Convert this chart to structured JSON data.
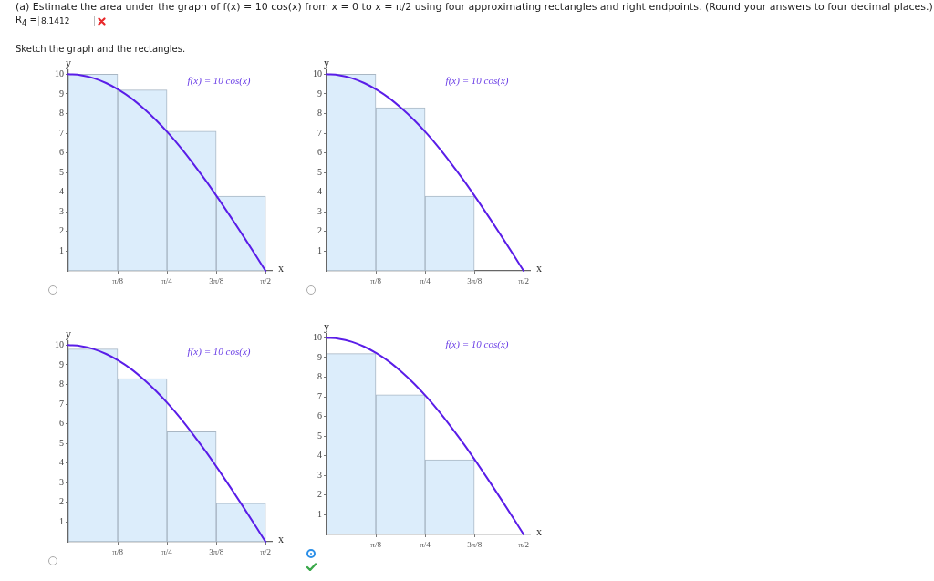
{
  "chart_data": [
    {
      "type": "other",
      "title": "(a) Estimate the area under the graph of f(x) = 10 cos(x) from x = 0 to x = π/2 using four approximating rectangles and right endpoints. (Round your answers to four decimal places.)",
      "annotations": [
        "R$_{4}$ =",
        "8.1412",
        "Sketch the graph and the rectangles."
      ]
    },
    {
      "type": "histogram",
      "xlabel": "x",
      "ylabel": "y",
      "xlim": [
        0,
        1.62
      ],
      "ylim": [
        0,
        10.2
      ],
      "xticks": [
        {
          "value": 0.393,
          "label": "π/8"
        },
        {
          "value": 0.785,
          "label": "π/4"
        },
        {
          "value": 1.178,
          "label": "3π/8"
        },
        {
          "value": 1.571,
          "label": "π/2"
        }
      ],
      "yticks": [
        1,
        2,
        3,
        4,
        5,
        6,
        7,
        8,
        9,
        10
      ],
      "annotations": [
        "f(x) = 10 cos(x)"
      ],
      "series": [
        {
          "type": "histogram",
          "bins": [
            0,
            0.393,
            0.785,
            1.178,
            1.571
          ],
          "values": [
            10,
            9.2,
            7.1,
            3.8
          ],
          "color": "#dcedfb"
        },
        {
          "type": "line",
          "x": [
            0,
            0.1,
            0.2,
            0.3,
            0.4,
            0.5,
            0.6,
            0.7,
            0.8,
            0.9,
            1.0,
            1.1,
            1.2,
            1.3,
            1.4,
            1.5,
            1.57
          ],
          "values": [
            10,
            9.95,
            9.8,
            9.55,
            9.21,
            8.78,
            8.25,
            7.65,
            6.97,
            6.22,
            5.4,
            4.54,
            3.62,
            2.67,
            1.7,
            0.71,
            0
          ],
          "color": "#5a1de8"
        }
      ]
    },
    {
      "type": "histogram",
      "xlabel": "x",
      "ylabel": "y",
      "xlim": [
        0,
        1.62
      ],
      "ylim": [
        0,
        10.2
      ],
      "xticks": [
        {
          "value": 0.393,
          "label": "π/8"
        },
        {
          "value": 0.785,
          "label": "π/4"
        },
        {
          "value": 1.178,
          "label": "3π/8"
        },
        {
          "value": 1.571,
          "label": "π/2"
        }
      ],
      "yticks": [
        1,
        2,
        3,
        4,
        5,
        6,
        7,
        8,
        9,
        10
      ],
      "annotations": [
        "f(x) = 10 cos(x)"
      ],
      "series": [
        {
          "type": "histogram",
          "bins": [
            0,
            0.393,
            0.785,
            1.178
          ],
          "values": [
            10,
            8.3,
            3.8
          ],
          "color": "#dcedfb"
        },
        {
          "type": "line",
          "x": [
            0,
            0.1,
            0.2,
            0.3,
            0.4,
            0.5,
            0.6,
            0.7,
            0.8,
            0.9,
            1.0,
            1.1,
            1.2,
            1.3,
            1.4,
            1.5,
            1.57
          ],
          "values": [
            10,
            9.95,
            9.8,
            9.55,
            9.21,
            8.78,
            8.25,
            7.65,
            6.97,
            6.22,
            5.4,
            4.54,
            3.62,
            2.67,
            1.7,
            0.71,
            0
          ],
          "color": "#5a1de8"
        }
      ]
    },
    {
      "type": "histogram",
      "xlabel": "x",
      "ylabel": "y",
      "xlim": [
        0,
        1.62
      ],
      "ylim": [
        0,
        10.2
      ],
      "xticks": [
        {
          "value": 0.393,
          "label": "π/8"
        },
        {
          "value": 0.785,
          "label": "π/4"
        },
        {
          "value": 1.178,
          "label": "3π/8"
        },
        {
          "value": 1.571,
          "label": "π/2"
        }
      ],
      "yticks": [
        1,
        2,
        3,
        4,
        5,
        6,
        7,
        8,
        9,
        10
      ],
      "annotations": [
        "f(x) = 10 cos(x)"
      ],
      "series": [
        {
          "type": "histogram",
          "bins": [
            0,
            0.393,
            0.785,
            1.178,
            1.571
          ],
          "values": [
            9.8,
            8.3,
            5.6,
            1.95
          ],
          "color": "#dcedfb"
        },
        {
          "type": "line",
          "x": [
            0,
            0.1,
            0.2,
            0.3,
            0.4,
            0.5,
            0.6,
            0.7,
            0.8,
            0.9,
            1.0,
            1.1,
            1.2,
            1.3,
            1.4,
            1.5,
            1.57
          ],
          "values": [
            10,
            9.95,
            9.8,
            9.55,
            9.21,
            8.78,
            8.25,
            7.65,
            6.97,
            6.22,
            5.4,
            4.54,
            3.62,
            2.67,
            1.7,
            0.71,
            0
          ],
          "color": "#5a1de8"
        }
      ]
    },
    {
      "type": "histogram",
      "xlabel": "x",
      "ylabel": "y",
      "xlim": [
        0,
        1.62
      ],
      "ylim": [
        0,
        10.2
      ],
      "xticks": [
        {
          "value": 0.393,
          "label": "π/8"
        },
        {
          "value": 0.785,
          "label": "π/4"
        },
        {
          "value": 1.178,
          "label": "3π/8"
        },
        {
          "value": 1.571,
          "label": "π/2"
        }
      ],
      "yticks": [
        1,
        2,
        3,
        4,
        5,
        6,
        7,
        8,
        9,
        10
      ],
      "annotations": [
        "f(x) = 10 cos(x)"
      ],
      "series": [
        {
          "type": "histogram",
          "bins": [
            0,
            0.393,
            0.785,
            1.178
          ],
          "values": [
            9.2,
            7.1,
            3.8
          ],
          "color": "#dcedfb"
        },
        {
          "type": "line",
          "x": [
            0,
            0.1,
            0.2,
            0.3,
            0.4,
            0.5,
            0.6,
            0.7,
            0.8,
            0.9,
            1.0,
            1.1,
            1.2,
            1.3,
            1.4,
            1.5,
            1.57
          ],
          "values": [
            10,
            9.95,
            9.8,
            9.55,
            9.21,
            8.78,
            8.25,
            7.65,
            6.97,
            6.22,
            5.4,
            4.54,
            3.62,
            2.67,
            1.7,
            0.71,
            0
          ],
          "color": "#5a1de8"
        }
      ]
    }
  ]
}
